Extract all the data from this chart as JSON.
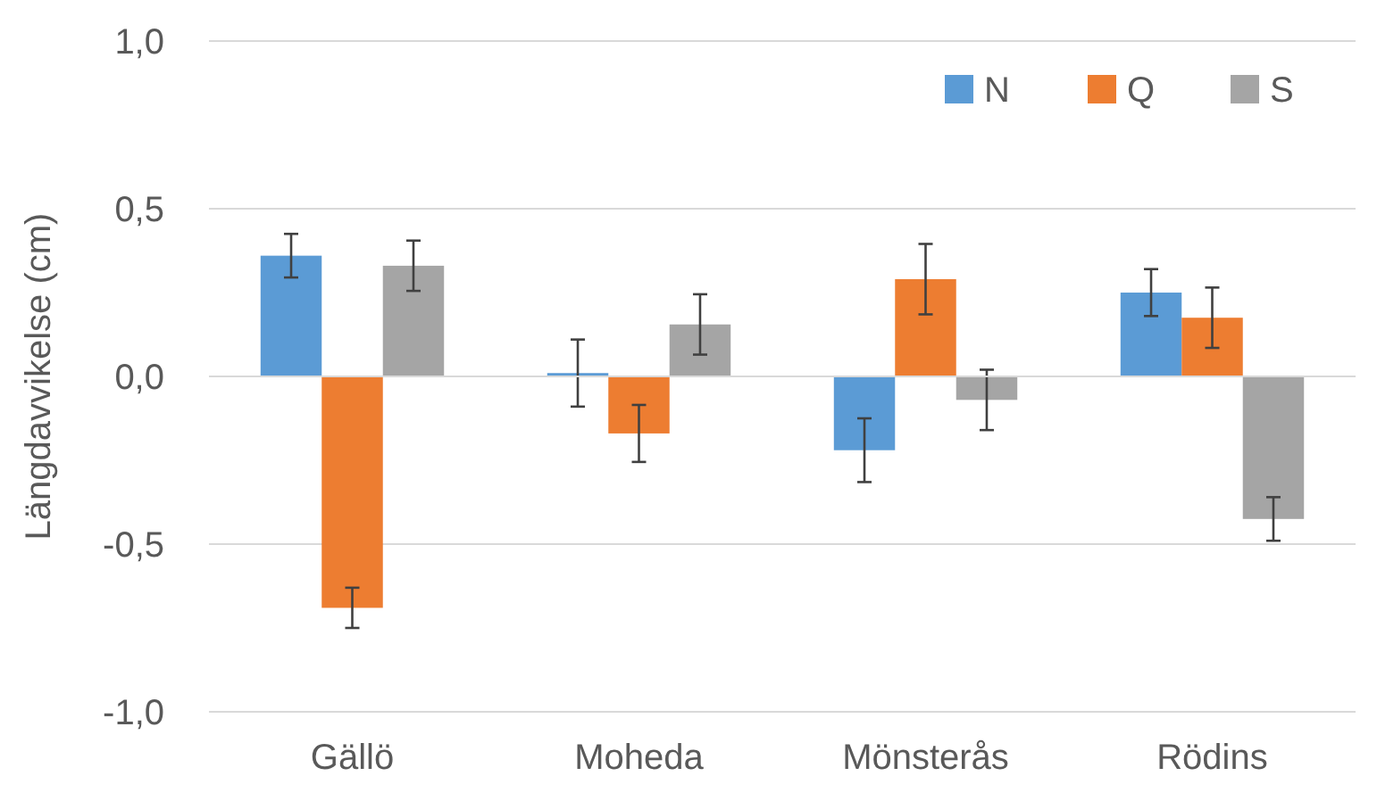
{
  "chart_data": {
    "type": "bar",
    "ylabel": "Längdavvikelse (cm)",
    "categories": [
      "Gällö",
      "Moheda",
      "Mönsterås",
      "Rödins"
    ],
    "series": [
      {
        "name": "N",
        "color": "#5b9bd5",
        "values": [
          0.36,
          0.01,
          -0.22,
          0.25
        ],
        "errors": [
          0.065,
          0.1,
          0.095,
          0.07
        ]
      },
      {
        "name": "Q",
        "color": "#ed7d31",
        "values": [
          -0.69,
          -0.17,
          0.29,
          0.175
        ],
        "errors": [
          0.06,
          0.085,
          0.105,
          0.09
        ]
      },
      {
        "name": "S",
        "color": "#a5a5a5",
        "values": [
          0.33,
          0.155,
          -0.07,
          -0.425
        ],
        "errors": [
          0.075,
          0.09,
          0.09,
          0.065
        ]
      }
    ],
    "ylim": [
      -1.0,
      1.0
    ],
    "yticks": [
      {
        "value": -1,
        "label": "-1,0"
      },
      {
        "value": -0.5,
        "label": "-0,5"
      },
      {
        "value": 0,
        "label": "0,0"
      },
      {
        "value": 0.5,
        "label": "0,5"
      },
      {
        "value": 1,
        "label": "1,0"
      }
    ],
    "grid": "y",
    "legend": "top right"
  }
}
